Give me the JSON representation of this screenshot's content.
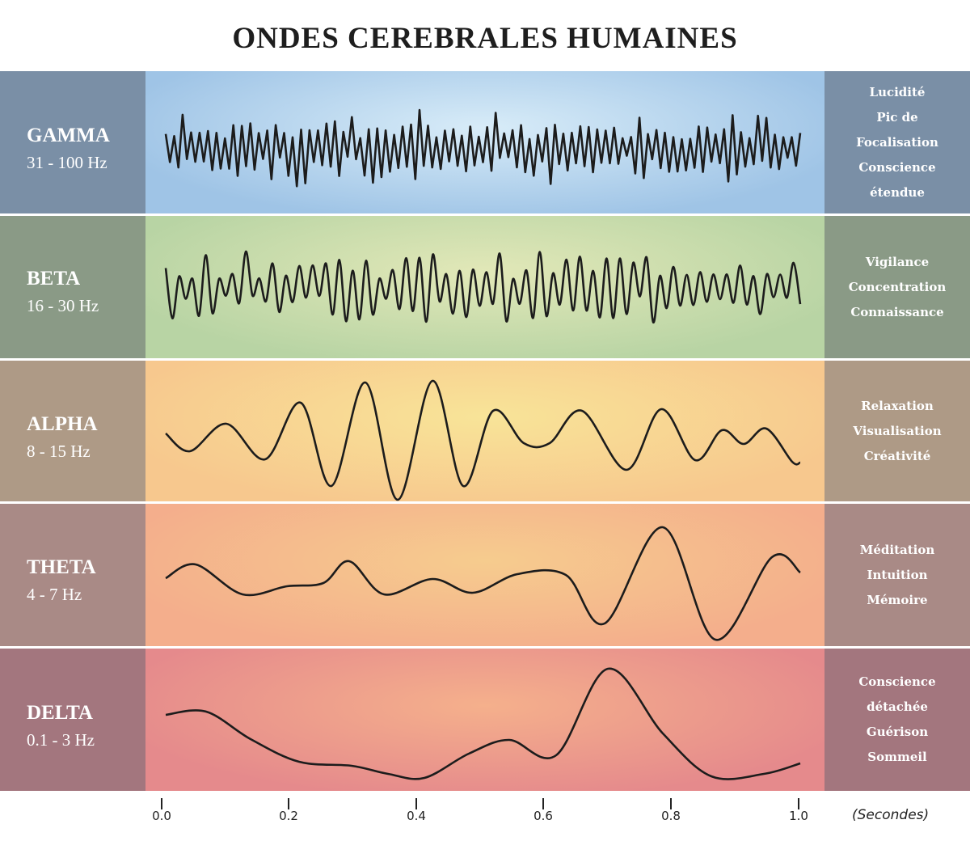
{
  "title": "ONDES CEREBRALES HUMAINES",
  "bands": [
    {
      "name": "GAMMA",
      "freq": "31 - 100 Hz",
      "descriptors": [
        "Lucidité",
        "Pic de",
        "Focalisation",
        "Conscience",
        "étendue"
      ],
      "colors": {
        "left": "#7a8fa6",
        "right": "#7a8fa6",
        "center": "#d8ecf8",
        "edge": "#9fc4e6"
      }
    },
    {
      "name": "BETA",
      "freq": "16 - 30 Hz",
      "descriptors": [
        "Vigilance",
        "Concentration",
        "Connaissance"
      ],
      "colors": {
        "left": "#8a9a86",
        "right": "#8a9a86",
        "center": "#e2e8b8",
        "edge": "#b8d4a4"
      }
    },
    {
      "name": "ALPHA",
      "freq": "8 - 15 Hz",
      "descriptors": [
        "Relaxation",
        "Visualisation",
        "Créativité"
      ],
      "colors": {
        "left": "#ae9a86",
        "right": "#ae9a86",
        "center": "#f8e498",
        "edge": "#f7c88e"
      }
    },
    {
      "name": "THETA",
      "freq": "4 - 7 Hz",
      "descriptors": [
        "Méditation",
        "Intuition",
        "Mémoire"
      ],
      "colors": {
        "left": "#a98a86",
        "right": "#a98a86",
        "center": "#f6cc8e",
        "edge": "#f4ae8c"
      }
    },
    {
      "name": "DELTA",
      "freq": "0.1 - 3 Hz",
      "descriptors": [
        "Conscience",
        "détachée",
        "Guérison",
        "Sommeil"
      ],
      "colors": {
        "left": "#a3767e",
        "right": "#a3767e",
        "center": "#f5b08c",
        "edge": "#e58a8c"
      }
    }
  ],
  "axis": {
    "ticks": [
      0.0,
      0.2,
      0.4,
      0.6,
      0.8,
      1.0
    ],
    "tick_labels": [
      "0.0",
      "0.2",
      "0.4",
      "0.6",
      "0.8",
      "1.0"
    ],
    "unit": "(Secondes)"
  }
}
